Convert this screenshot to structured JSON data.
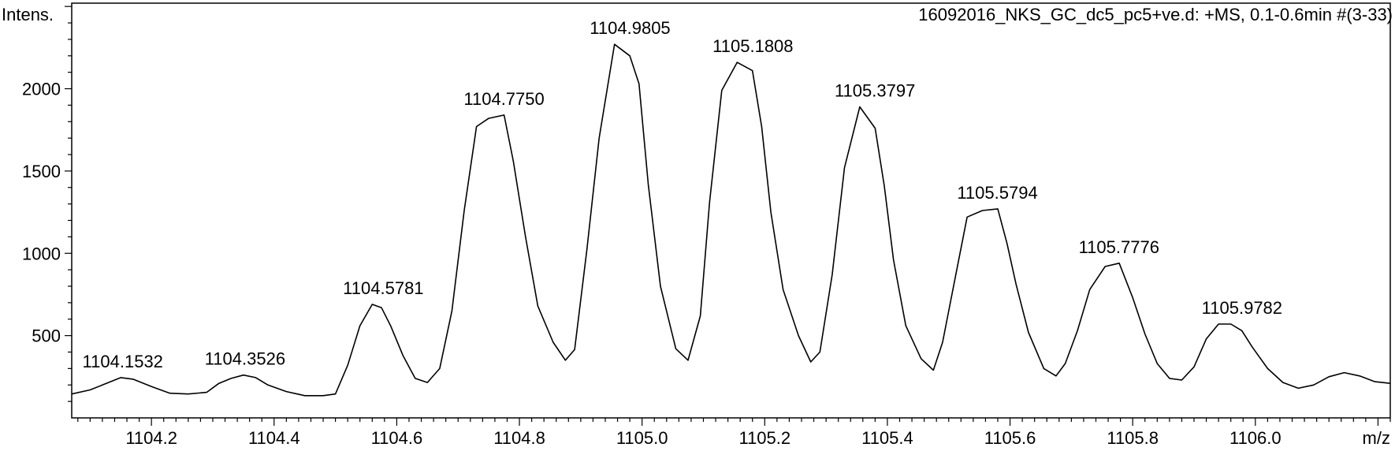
{
  "chart_data": {
    "type": "line",
    "title": "16092016_NKS_GC_dc5_pc5+ve.d: +MS, 0.1-0.6min #(3-33)",
    "ylabel": "Intens.",
    "xlabel": "m/z",
    "xlim": [
      1104.07,
      1106.22
    ],
    "ylim": [
      0,
      2520
    ],
    "xticks": [
      "1104.2",
      "1104.4",
      "1104.6",
      "1104.8",
      "1105.0",
      "1105.2",
      "1105.4",
      "1105.6",
      "1105.8",
      "1106.0"
    ],
    "yticks": [
      "500",
      "1000",
      "1500",
      "2000"
    ],
    "grid": false,
    "series": [
      {
        "x": [
          1104.07,
          1104.1,
          1104.12,
          1104.15,
          1104.17,
          1104.2,
          1104.23,
          1104.26,
          1104.29,
          1104.31,
          1104.33,
          1104.35,
          1104.37,
          1104.39,
          1104.42,
          1104.45,
          1104.48,
          1104.5,
          1104.52,
          1104.54,
          1104.56,
          1104.575,
          1104.59,
          1104.61,
          1104.63,
          1104.65,
          1104.67,
          1104.69,
          1104.71,
          1104.73,
          1104.75,
          1104.775,
          1104.79,
          1104.81,
          1104.83,
          1104.855,
          1104.875,
          1104.89,
          1104.91,
          1104.93,
          1104.955,
          1104.98,
          1104.995,
          1105.01,
          1105.03,
          1105.055,
          1105.075,
          1105.095,
          1105.11,
          1105.13,
          1105.155,
          1105.18,
          1105.195,
          1105.21,
          1105.23,
          1105.255,
          1105.275,
          1105.29,
          1105.31,
          1105.33,
          1105.355,
          1105.38,
          1105.395,
          1105.41,
          1105.43,
          1105.455,
          1105.475,
          1105.49,
          1105.51,
          1105.53,
          1105.555,
          1105.58,
          1105.595,
          1105.61,
          1105.63,
          1105.655,
          1105.675,
          1105.69,
          1105.71,
          1105.73,
          1105.755,
          1105.778,
          1105.8,
          1105.82,
          1105.84,
          1105.86,
          1105.88,
          1105.9,
          1105.92,
          1105.94,
          1105.96,
          1105.978,
          1105.995,
          1106.02,
          1106.045,
          1106.07,
          1106.095,
          1106.12,
          1106.145,
          1106.17,
          1106.195,
          1106.22
        ],
        "y": [
          145,
          170,
          200,
          245,
          235,
          190,
          150,
          145,
          155,
          210,
          240,
          260,
          245,
          200,
          160,
          135,
          135,
          145,
          320,
          560,
          690,
          670,
          560,
          380,
          240,
          215,
          300,
          650,
          1260,
          1770,
          1820,
          1840,
          1560,
          1100,
          680,
          460,
          350,
          415,
          1020,
          1700,
          2270,
          2200,
          2030,
          1420,
          800,
          420,
          350,
          620,
          1310,
          1990,
          2160,
          2110,
          1770,
          1250,
          780,
          500,
          340,
          400,
          870,
          1520,
          1890,
          1760,
          1410,
          960,
          560,
          360,
          290,
          460,
          840,
          1220,
          1260,
          1270,
          1060,
          810,
          520,
          300,
          255,
          330,
          530,
          780,
          920,
          940,
          730,
          510,
          330,
          240,
          230,
          310,
          480,
          570,
          570,
          530,
          430,
          300,
          215,
          180,
          200,
          250,
          275,
          255,
          220,
          210
        ]
      }
    ],
    "peaks": [
      {
        "x": 1104.1532,
        "y": 245,
        "label": "1104.1532"
      },
      {
        "x": 1104.3526,
        "y": 260,
        "label": "1104.3526"
      },
      {
        "x": 1104.5781,
        "y": 690,
        "label": "1104.5781"
      },
      {
        "x": 1104.775,
        "y": 1840,
        "label": "1104.7750"
      },
      {
        "x": 1104.9805,
        "y": 2270,
        "label": "1104.9805"
      },
      {
        "x": 1105.1808,
        "y": 2160,
        "label": "1105.1808"
      },
      {
        "x": 1105.3797,
        "y": 1890,
        "label": "1105.3797"
      },
      {
        "x": 1105.5794,
        "y": 1270,
        "label": "1105.5794"
      },
      {
        "x": 1105.7776,
        "y": 940,
        "label": "1105.7776"
      },
      {
        "x": 1105.9782,
        "y": 570,
        "label": "1105.9782"
      }
    ]
  }
}
